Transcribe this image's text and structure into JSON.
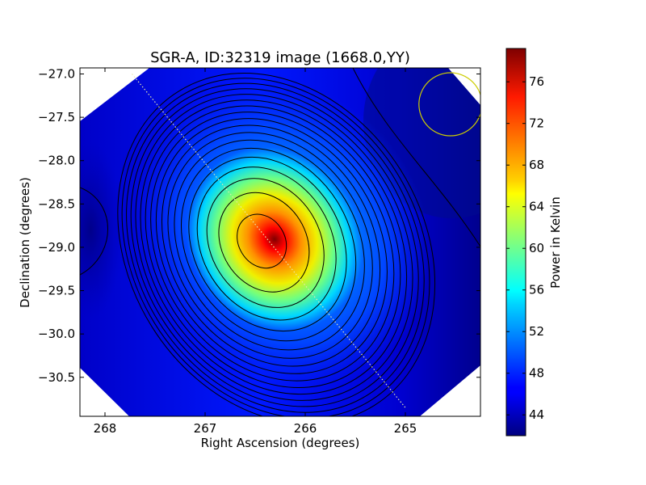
{
  "chart_data": {
    "type": "heatmap",
    "title": "SGR-A, ID:32319 image (1668.0,YY)",
    "xlabel": "Right Ascension (degrees)",
    "ylabel": "Declination (degrees)",
    "xlim": [
      268.25,
      264.25
    ],
    "ylim": [
      -30.95,
      -26.93
    ],
    "xticks": [
      268,
      267,
      266,
      265
    ],
    "xtick_labels": [
      "268",
      "267",
      "266",
      "265"
    ],
    "yticks": [
      -27.0,
      -27.5,
      -28.0,
      -28.5,
      -29.0,
      -29.5,
      -30.0,
      -30.5
    ],
    "ytick_labels": [
      "−27.0",
      "−27.5",
      "−28.0",
      "−28.5",
      "−29.0",
      "−29.5",
      "−30.0",
      "−30.5"
    ],
    "colorbar": {
      "label": "Power in Kelvin",
      "colormap": "jet",
      "vmin": 42.0,
      "vmax": 79.2,
      "ticks": [
        44,
        48,
        52,
        56,
        60,
        64,
        68,
        72,
        76
      ],
      "tick_labels": [
        "44",
        "48",
        "52",
        "56",
        "60",
        "64",
        "68",
        "72",
        "76"
      ]
    },
    "peak": {
      "ra": 266.45,
      "dec": -28.92,
      "value": 78.5
    },
    "contour_levels": [
      44,
      46,
      48,
      50,
      52,
      54,
      56,
      58,
      60,
      62,
      64,
      66,
      68,
      70,
      72,
      74,
      76,
      78
    ],
    "dotted_line": {
      "ra": [
        267.73,
        265.0
      ],
      "dec": [
        -27.0,
        -30.85
      ],
      "color": "#e8e8b0"
    },
    "beam_circle": {
      "ra": 264.55,
      "dec": -27.35,
      "color": "#cccc00"
    },
    "grid": false
  }
}
